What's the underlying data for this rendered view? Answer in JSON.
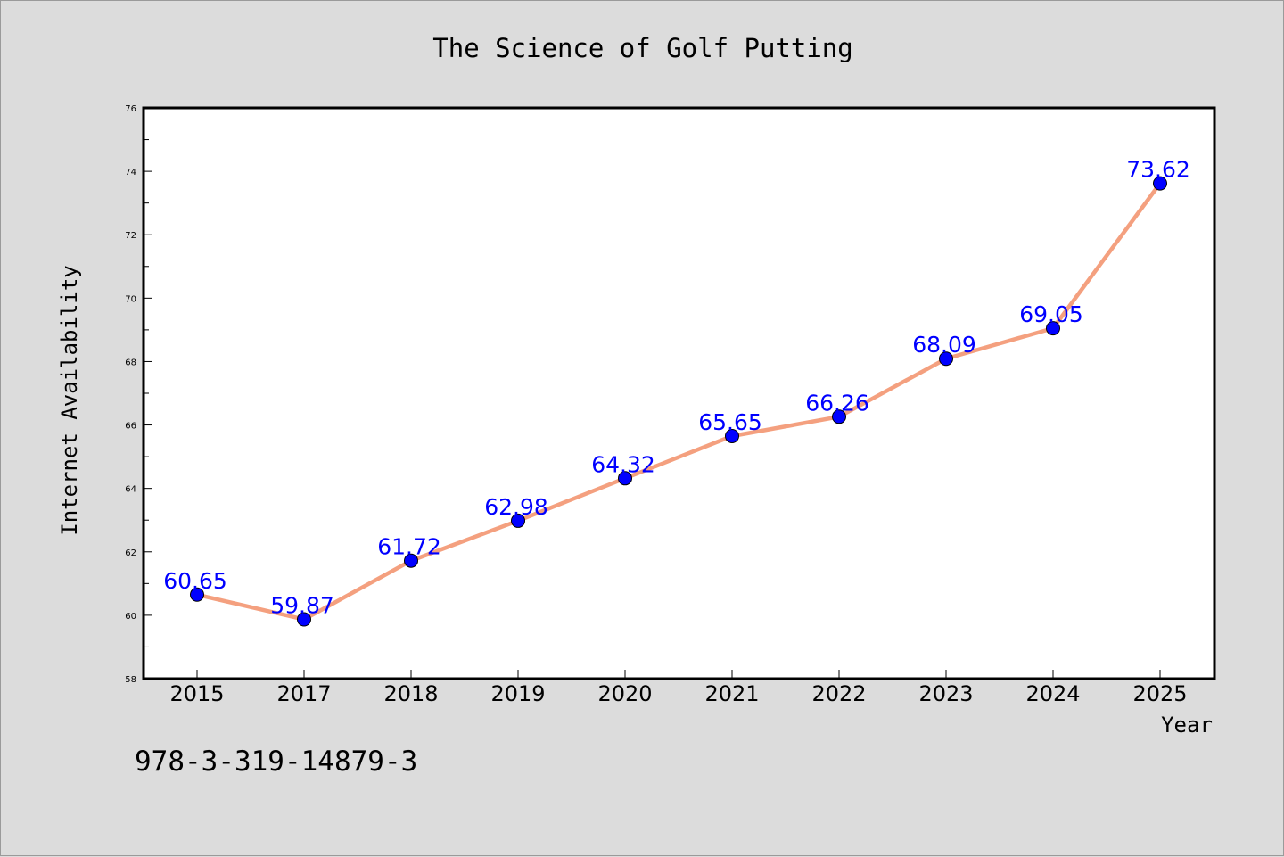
{
  "chart_data": {
    "type": "line",
    "title": "The Science of Golf Putting",
    "xlabel": "Year",
    "ylabel": "Internet Availability",
    "categories": [
      "2015",
      "2017",
      "2018",
      "2019",
      "2020",
      "2021",
      "2022",
      "2023",
      "2024",
      "2025"
    ],
    "series": [
      {
        "values": [
          60.65,
          59.87,
          61.72,
          62.98,
          64.32,
          65.65,
          66.26,
          68.09,
          69.05,
          73.62
        ],
        "value_labels": [
          "60.65",
          "59.87",
          "61.72",
          "62.98",
          "64.32",
          "65.65",
          "66.26",
          "68.09",
          "69.05",
          "73.62"
        ],
        "line_color": "#f4a07f",
        "marker_color": "#0000ff"
      }
    ],
    "ylim": [
      58,
      76
    ],
    "yticks": [
      "58",
      "60",
      "62",
      "64",
      "66",
      "68",
      "70",
      "72",
      "74",
      "76"
    ],
    "grid": false,
    "legend": "none"
  },
  "annotation": "978-3-319-14879-3",
  "colors": {
    "background": "#dcdcdc",
    "plot_background": "#ffffff",
    "line": "#f4a07f",
    "marker": "#0000ff",
    "data_label": "#0000ff"
  }
}
